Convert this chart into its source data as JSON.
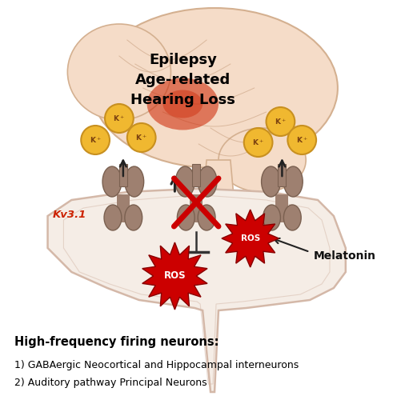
{
  "bg_color": "#ffffff",
  "neuron_body_color": "#f5ede6",
  "neuron_outline_color": "#d4b8a8",
  "channel_color": "#9e8070",
  "channel_outline": "#7a6050",
  "k_ion_color": "#f0b830",
  "k_ion_outline": "#c89020",
  "k_text_color": "#7a4010",
  "ros_color": "#cc0000",
  "ros_edge_color": "#880000",
  "ros_text_color": "#ffffff",
  "brain_base_color": "#f5dcc8",
  "brain_outline_color": "#d4b090",
  "brain_fold_color": "#c8a080",
  "brain_red_color": "#cc2200",
  "arrow_color": "#222222",
  "x_mark_color": "#cc0000",
  "inhibit_line_color": "#333333",
  "kv_label_color": "#cc2200",
  "melatonin_color": "#111111",
  "text_line1": "High-frequency firing neurons:",
  "text_line2": "1) GABAergic Neocortical and Hippocampal interneurons",
  "text_line3": "2) Auditory pathway Principal Neurons",
  "brain_text1": "Epilepsy",
  "brain_text2": "Age-related",
  "brain_text3": "Hearing Loss",
  "kv_label": "Kv3.1",
  "melatonin_label": "Melatonin",
  "ros_label": "ROS",
  "figsize": [
    4.91,
    5.0
  ],
  "dpi": 100
}
